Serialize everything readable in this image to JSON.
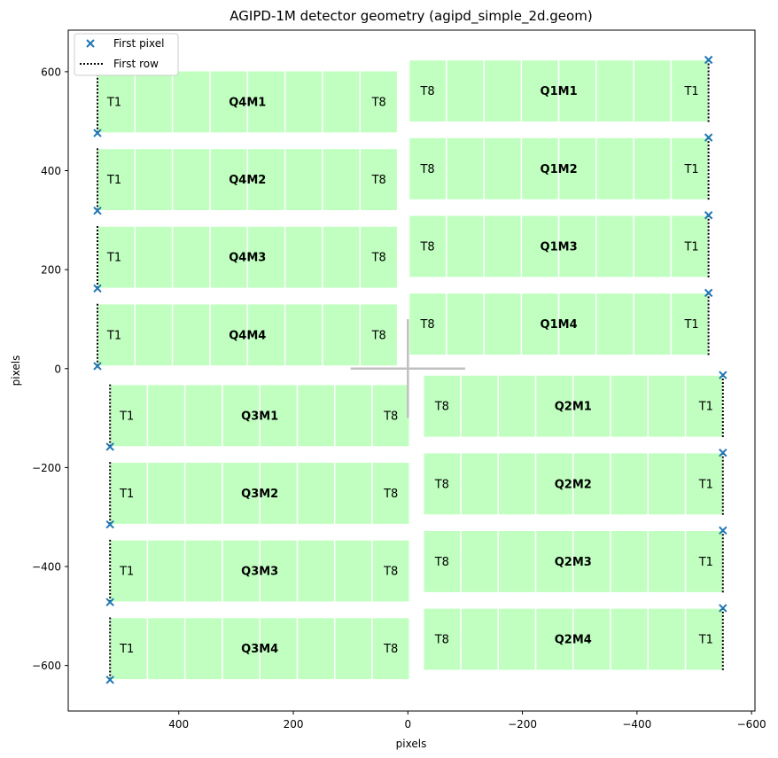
{
  "chart_data": {
    "type": "detector-geometry",
    "title": "AGIPD-1M detector geometry (agipd_simple_2d.geom)",
    "xlabel": "pixels",
    "ylabel": "pixels",
    "x_inverted": true,
    "xlim": [
      593,
      -606
    ],
    "ylim": [
      -692,
      684
    ],
    "xticks": [
      {
        "value": 400,
        "label": "400"
      },
      {
        "value": 200,
        "label": "200"
      },
      {
        "value": 0,
        "label": "0"
      },
      {
        "value": -200,
        "label": "−200"
      },
      {
        "value": -400,
        "label": "−400"
      },
      {
        "value": -600,
        "label": "−600"
      }
    ],
    "yticks": [
      {
        "value": 600,
        "label": "600"
      },
      {
        "value": 400,
        "label": "400"
      },
      {
        "value": 200,
        "label": "200"
      },
      {
        "value": 0,
        "label": "0"
      },
      {
        "value": -200,
        "label": "−200"
      },
      {
        "value": -400,
        "label": "−400"
      },
      {
        "value": -600,
        "label": "−600"
      }
    ],
    "grid": false,
    "tile_color": "#c0ffc0",
    "tile_edge_color": "#ffffff",
    "first_pixel_color": "#1f77b4",
    "first_row_color": "#000000",
    "centre_cross_color": "#c0c0c0",
    "tiles_per_module": 8,
    "legend": {
      "position": "top-left",
      "entries": [
        {
          "marker": "x",
          "label": "First pixel"
        },
        {
          "marker": "dotted-line",
          "label": "First row"
        }
      ]
    },
    "centre_cross": {
      "x_range": [
        100,
        -100
      ],
      "y_range": [
        -100,
        100
      ]
    },
    "modules": [
      {
        "name": "Q1M1",
        "x_range": [
          -2,
          -525
        ],
        "y_range": [
          498,
          624
        ],
        "first_tile": "T1",
        "last_tile": "T8",
        "first_pixel": [
          -525,
          624
        ],
        "first_row_x": -525
      },
      {
        "name": "Q1M2",
        "x_range": [
          -2,
          -525
        ],
        "y_range": [
          341,
          467
        ],
        "first_tile": "T1",
        "last_tile": "T8",
        "first_pixel": [
          -525,
          467
        ],
        "first_row_x": -525
      },
      {
        "name": "Q1M3",
        "x_range": [
          -2,
          -525
        ],
        "y_range": [
          184,
          310
        ],
        "first_tile": "T1",
        "last_tile": "T8",
        "first_pixel": [
          -525,
          310
        ],
        "first_row_x": -525
      },
      {
        "name": "Q1M4",
        "x_range": [
          -2,
          -525
        ],
        "y_range": [
          27,
          153
        ],
        "first_tile": "T1",
        "last_tile": "T8",
        "first_pixel": [
          -525,
          153
        ],
        "first_row_x": -525
      },
      {
        "name": "Q2M1",
        "x_range": [
          -27,
          -550
        ],
        "y_range": [
          -139,
          -13
        ],
        "first_tile": "T1",
        "last_tile": "T8",
        "first_pixel": [
          -550,
          -13
        ],
        "first_row_x": -550
      },
      {
        "name": "Q2M2",
        "x_range": [
          -27,
          -550
        ],
        "y_range": [
          -296,
          -170
        ],
        "first_tile": "T1",
        "last_tile": "T8",
        "first_pixel": [
          -550,
          -170
        ],
        "first_row_x": -550
      },
      {
        "name": "Q2M3",
        "x_range": [
          -27,
          -550
        ],
        "y_range": [
          -453,
          -327
        ],
        "first_tile": "T1",
        "last_tile": "T8",
        "first_pixel": [
          -550,
          -327
        ],
        "first_row_x": -550
      },
      {
        "name": "Q2M4",
        "x_range": [
          -27,
          -550
        ],
        "y_range": [
          -610,
          -484
        ],
        "first_tile": "T1",
        "last_tile": "T8",
        "first_pixel": [
          -550,
          -484
        ],
        "first_row_x": -550
      },
      {
        "name": "Q3M1",
        "x_range": [
          520,
          -3
        ],
        "y_range": [
          -158,
          -32
        ],
        "first_tile": "T1",
        "last_tile": "T8",
        "first_pixel": [
          520,
          -158
        ],
        "first_row_x": 520
      },
      {
        "name": "Q3M2",
        "x_range": [
          520,
          -3
        ],
        "y_range": [
          -315,
          -189
        ],
        "first_tile": "T1",
        "last_tile": "T8",
        "first_pixel": [
          520,
          -315
        ],
        "first_row_x": 520
      },
      {
        "name": "Q3M3",
        "x_range": [
          520,
          -3
        ],
        "y_range": [
          -472,
          -346
        ],
        "first_tile": "T1",
        "last_tile": "T8",
        "first_pixel": [
          520,
          -472
        ],
        "first_row_x": 520
      },
      {
        "name": "Q3M4",
        "x_range": [
          520,
          -3
        ],
        "y_range": [
          -629,
          -503
        ],
        "first_tile": "T1",
        "last_tile": "T8",
        "first_pixel": [
          520,
          -629
        ],
        "first_row_x": 520
      },
      {
        "name": "Q4M1",
        "x_range": [
          542,
          18
        ],
        "y_range": [
          476,
          602
        ],
        "first_tile": "T1",
        "last_tile": "T8",
        "first_pixel": [
          542,
          476
        ],
        "first_row_x": 542
      },
      {
        "name": "Q4M2",
        "x_range": [
          542,
          18
        ],
        "y_range": [
          319,
          445
        ],
        "first_tile": "T1",
        "last_tile": "T8",
        "first_pixel": [
          542,
          319
        ],
        "first_row_x": 542
      },
      {
        "name": "Q4M3",
        "x_range": [
          542,
          18
        ],
        "y_range": [
          162,
          288
        ],
        "first_tile": "T1",
        "last_tile": "T8",
        "first_pixel": [
          542,
          162
        ],
        "first_row_x": 542
      },
      {
        "name": "Q4M4",
        "x_range": [
          542,
          18
        ],
        "y_range": [
          5,
          131
        ],
        "first_tile": "T1",
        "last_tile": "T8",
        "first_pixel": [
          542,
          5
        ],
        "first_row_x": 542
      }
    ]
  }
}
